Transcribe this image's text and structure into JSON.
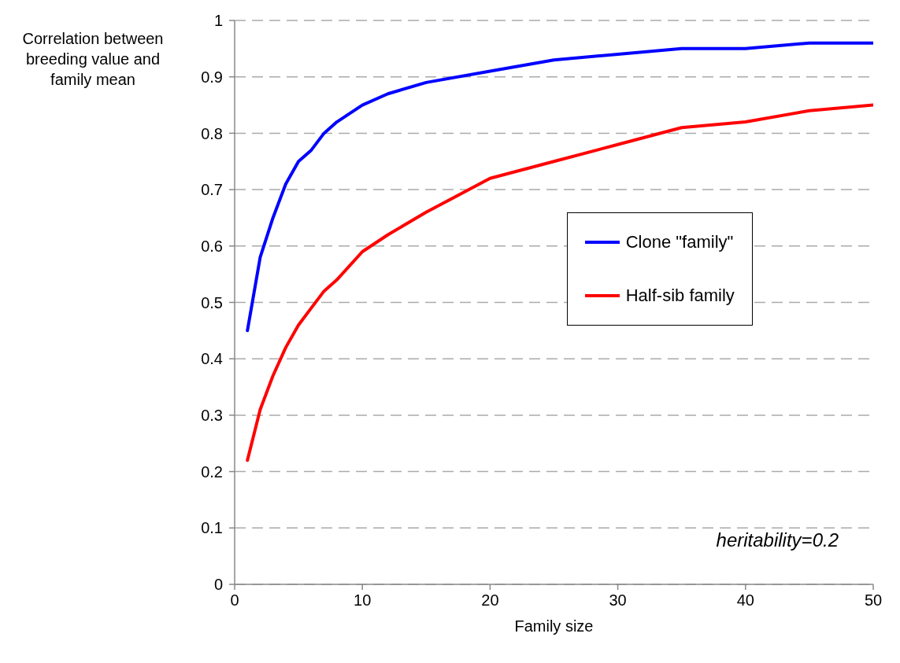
{
  "chart_data": {
    "type": "line",
    "xlabel": "Family size",
    "ylabel": "Correlation between breeding value and family mean",
    "x": [
      1,
      2,
      3,
      4,
      5,
      6,
      7,
      8,
      10,
      12,
      15,
      20,
      25,
      30,
      35,
      40,
      45,
      50
    ],
    "series": [
      {
        "name": "Clone \"family\"",
        "color": "#0000ff",
        "values": [
          0.45,
          0.58,
          0.65,
          0.71,
          0.75,
          0.77,
          0.8,
          0.82,
          0.85,
          0.87,
          0.89,
          0.91,
          0.93,
          0.94,
          0.95,
          0.95,
          0.96,
          0.96
        ]
      },
      {
        "name": "Half-sib family",
        "color": "#ff0000",
        "values": [
          0.22,
          0.31,
          0.37,
          0.42,
          0.46,
          0.49,
          0.52,
          0.54,
          0.59,
          0.62,
          0.66,
          0.72,
          0.75,
          0.78,
          0.81,
          0.82,
          0.84,
          0.85
        ]
      }
    ],
    "xlim": [
      0,
      50
    ],
    "xticks": [
      0,
      10,
      20,
      30,
      40,
      50
    ],
    "ylim": [
      0,
      1
    ],
    "yticks": [
      0,
      0.1,
      0.2,
      0.3,
      0.4,
      0.5,
      0.6,
      0.7,
      0.8,
      0.9,
      1
    ],
    "grid": "y",
    "legend": "right",
    "marker": "none",
    "line_style": "solid",
    "annotations": [
      "heritability=0.2"
    ]
  }
}
